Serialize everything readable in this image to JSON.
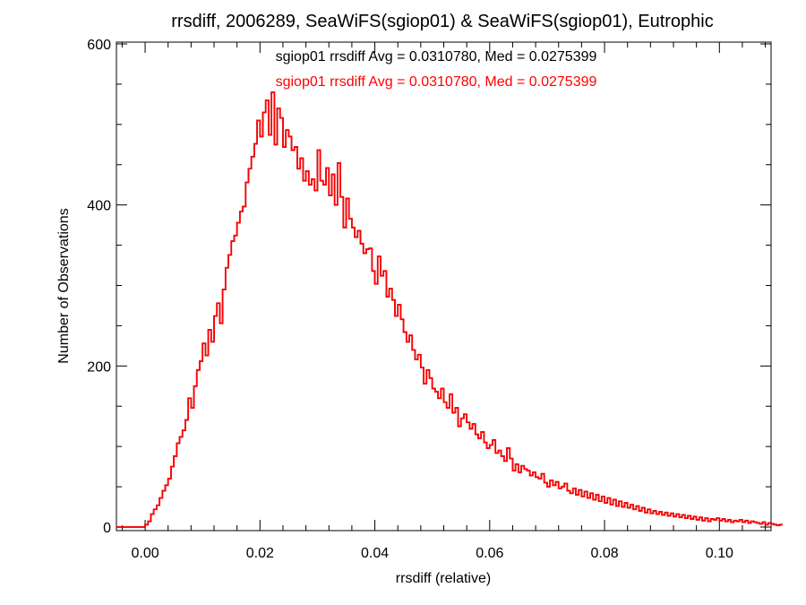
{
  "chart_data": {
    "type": "histogram",
    "title": "rrsdiff, 2006289, SeaWiFS(sgiop01) & SeaWiFS(sgiop01), Eutrophic",
    "xlabel": "rrsdiff (relative)",
    "ylabel": "Number of Observations",
    "xlim": [
      -0.005,
      0.109
    ],
    "ylim": [
      0,
      600
    ],
    "x_ticks": [
      0.0,
      0.02,
      0.04,
      0.06,
      0.08,
      0.1
    ],
    "x_tick_labels": [
      "0.00",
      "0.02",
      "0.04",
      "0.06",
      "0.08",
      "0.10"
    ],
    "y_ticks": [
      0,
      200,
      400,
      600
    ],
    "y_tick_labels": [
      "0",
      "200",
      "400",
      "600"
    ],
    "annotations": [
      {
        "text": "sgiop01 rrsdiff Avg = 0.0310780, Med = 0.0275399",
        "color": "#000000"
      },
      {
        "text": "sgiop01 rrsdiff Avg = 0.0310780, Med = 0.0275399",
        "color": "#ff0000"
      }
    ],
    "series": [
      {
        "color": "#000000",
        "bin_width": 0.0005,
        "bin_start": -0.005,
        "counts": [
          0,
          0,
          0,
          0,
          0,
          0,
          0,
          0,
          0,
          0,
          3,
          7,
          16,
          22,
          27,
          36,
          45,
          52,
          60,
          75,
          88,
          104,
          112,
          120,
          133,
          160,
          148,
          175,
          195,
          206,
          228,
          213,
          245,
          230,
          262,
          278,
          253,
          295,
          322,
          338,
          355,
          362,
          378,
          392,
          398,
          428,
          445,
          460,
          476,
          505,
          485,
          515,
          530,
          487,
          540,
          475,
          520,
          508,
          472,
          493,
          485,
          468,
          472,
          445,
          458,
          430,
          442,
          425,
          432,
          418,
          468,
          430,
          425,
          446,
          412,
          438,
          400,
          452,
          410,
          372,
          408,
          383,
          372,
          360,
          368,
          352,
          340,
          345,
          346,
          318,
          302,
          336,
          312,
          318,
          286,
          296,
          282,
          262,
          276,
          258,
          242,
          230,
          238,
          220,
          208,
          214,
          198,
          178,
          195,
          185,
          172,
          168,
          160,
          172,
          155,
          148,
          165,
          142,
          148,
          125,
          135,
          140,
          130,
          122,
          128,
          115,
          110,
          118,
          105,
          98,
          102,
          108,
          92,
          95,
          88,
          82,
          98,
          85,
          70,
          78,
          68,
          76,
          72,
          70,
          64,
          68,
          62,
          60,
          66,
          55,
          50,
          58,
          52,
          56,
          48,
          50,
          54,
          45,
          42,
          48,
          40,
          46,
          38,
          44,
          36,
          42,
          34,
          40,
          32,
          38,
          30,
          36,
          28,
          34,
          26,
          32,
          25,
          30,
          24,
          28,
          22,
          26,
          20,
          24,
          18,
          22,
          17,
          20,
          16,
          19,
          15,
          18,
          14,
          17,
          13,
          16,
          12,
          15,
          11,
          14,
          10,
          13,
          9,
          12,
          8,
          11,
          7,
          10,
          9,
          11,
          8,
          10,
          7,
          9,
          6,
          8,
          7,
          9,
          6,
          8,
          5,
          7,
          6,
          5,
          4,
          6,
          3,
          5,
          4,
          3,
          2,
          3
        ]
      },
      {
        "color": "#ff0000",
        "bin_width": 0.0005,
        "bin_start": -0.005,
        "counts": [
          0,
          0,
          0,
          0,
          0,
          0,
          0,
          0,
          0,
          0,
          3,
          7,
          16,
          22,
          27,
          36,
          45,
          52,
          60,
          75,
          88,
          104,
          112,
          120,
          133,
          160,
          148,
          175,
          195,
          206,
          228,
          213,
          245,
          230,
          262,
          278,
          253,
          295,
          322,
          338,
          355,
          362,
          378,
          392,
          398,
          428,
          445,
          460,
          476,
          505,
          485,
          515,
          530,
          487,
          540,
          475,
          520,
          508,
          472,
          493,
          485,
          468,
          472,
          445,
          458,
          430,
          442,
          425,
          432,
          418,
          468,
          430,
          425,
          446,
          412,
          438,
          400,
          452,
          410,
          372,
          408,
          383,
          372,
          360,
          368,
          352,
          340,
          345,
          346,
          318,
          302,
          336,
          312,
          318,
          286,
          296,
          282,
          262,
          276,
          258,
          242,
          230,
          238,
          220,
          208,
          214,
          198,
          178,
          195,
          185,
          172,
          168,
          160,
          172,
          155,
          148,
          165,
          142,
          148,
          125,
          135,
          140,
          130,
          122,
          128,
          115,
          110,
          118,
          105,
          98,
          102,
          108,
          92,
          95,
          88,
          82,
          98,
          85,
          70,
          78,
          68,
          76,
          72,
          70,
          64,
          68,
          62,
          60,
          66,
          55,
          50,
          58,
          52,
          56,
          48,
          50,
          54,
          45,
          42,
          48,
          40,
          46,
          38,
          44,
          36,
          42,
          34,
          40,
          32,
          38,
          30,
          36,
          28,
          34,
          26,
          32,
          25,
          30,
          24,
          28,
          22,
          26,
          20,
          24,
          18,
          22,
          17,
          20,
          16,
          19,
          15,
          18,
          14,
          17,
          13,
          16,
          12,
          15,
          11,
          14,
          10,
          13,
          9,
          12,
          8,
          11,
          7,
          10,
          9,
          11,
          8,
          10,
          7,
          9,
          6,
          8,
          7,
          9,
          6,
          8,
          5,
          7,
          6,
          5,
          4,
          6,
          3,
          5,
          4,
          3,
          2,
          3
        ]
      }
    ]
  }
}
